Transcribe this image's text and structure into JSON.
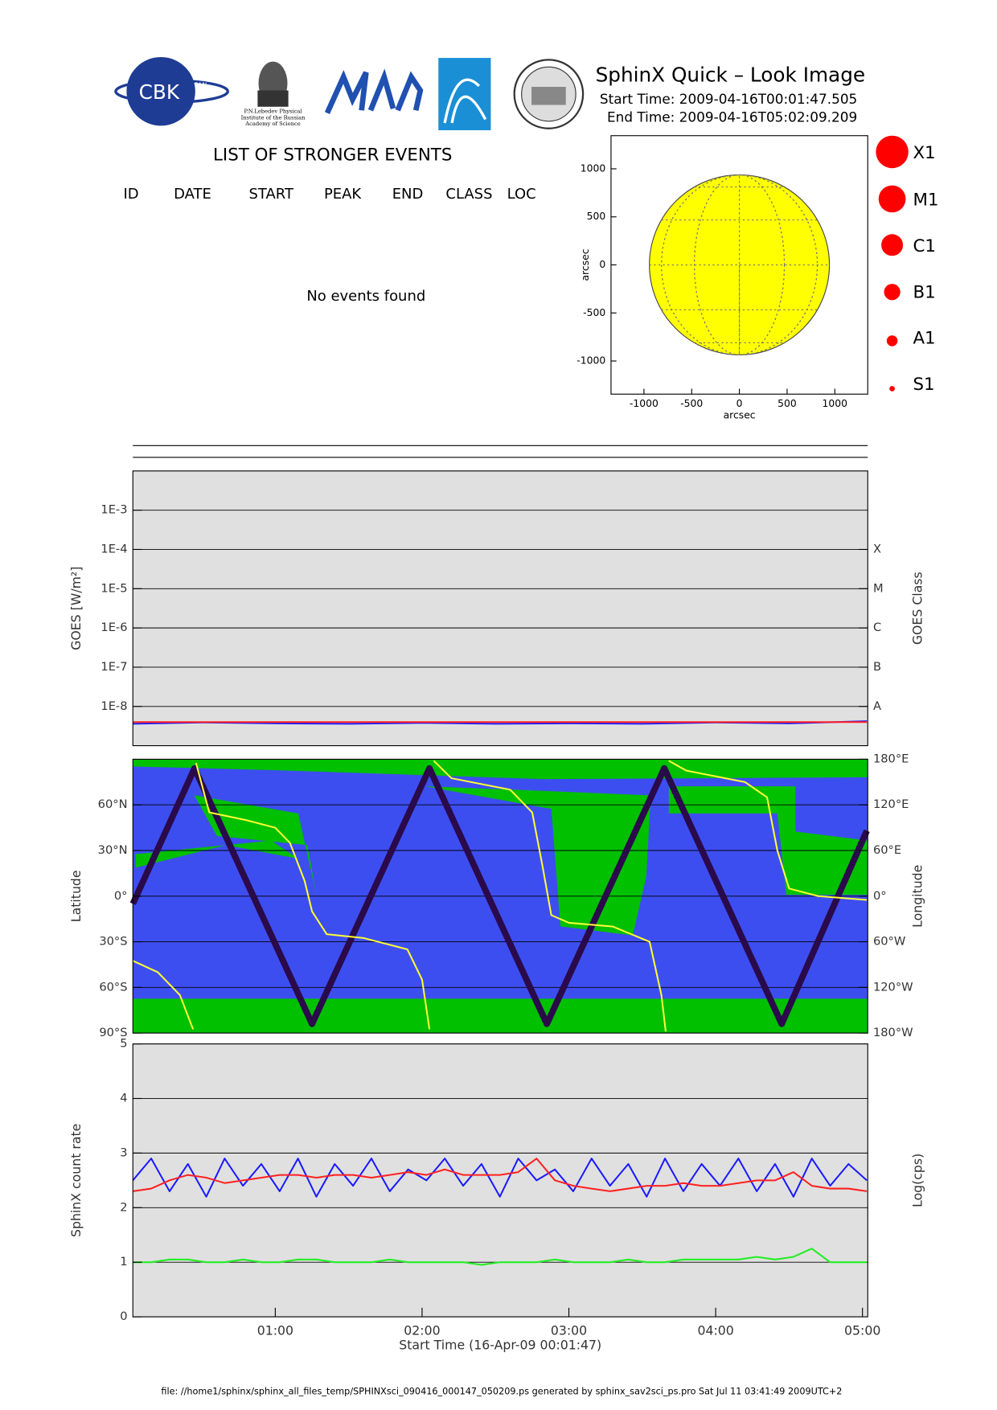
{
  "header": {
    "title": "SphinX Quick – Look Image",
    "start_time": "Start Time: 2009-04-16T00:01:47.505",
    "end_time": "End Time: 2009-04-16T05:02:09.209",
    "logos": [
      "CBK",
      "PAN",
      "P.N.Lebedev Physical",
      "Institute of the Russian",
      "Academy of Science"
    ]
  },
  "events": {
    "title": "LIST OF STRONGER EVENTS",
    "columns": [
      "ID",
      "DATE",
      "START",
      "PEAK",
      "END",
      "CLASS",
      "LOC"
    ],
    "message": "No events found"
  },
  "legend_classes": [
    "X1",
    "M1",
    "C1",
    "B1",
    "A1",
    "S1"
  ],
  "footer": "file: //home1/sphinx/sphinx_all_files_temp/SPHINXsci_090416_000147_050209.ps generated by sphinx_sav2sci_ps.pro Sat Jul 11 03:41:49 2009UTC+2",
  "chart_data": [
    {
      "type": "map",
      "xlabel": "arcsec",
      "ylabel": "arcsec",
      "xlim": [
        -1345,
        1345
      ],
      "ylim": [
        -1345,
        1345
      ],
      "xticks": [
        -1000,
        -500,
        0,
        500,
        1000
      ],
      "yticks": [
        -1000,
        -500,
        0,
        500,
        1000
      ],
      "disk_radius": 943,
      "color": "#ffff00"
    },
    {
      "type": "line",
      "log_y": true,
      "ylabel": "GOES [W/m²]",
      "y2label": "GOES Class",
      "xlim": [
        0.0299,
        5.0359
      ],
      "ylim": [
        1e-09,
        0.01
      ],
      "y2lim": [
        1e-09,
        0.01
      ],
      "grid": true,
      "yticks": [
        {
          "value": 0.001,
          "label": "1E-3"
        },
        {
          "value": 0.0001,
          "label": "1E-4"
        },
        {
          "value": 1e-05,
          "label": "1E-5"
        },
        {
          "value": 1e-06,
          "label": "1E-6"
        },
        {
          "value": 1e-07,
          "label": "1E-7"
        },
        {
          "value": 1e-08,
          "label": "1E-8"
        }
      ],
      "y2ticks": [
        {
          "value": 0.0001,
          "label": "X"
        },
        {
          "value": 1e-05,
          "label": "M"
        },
        {
          "value": 1e-06,
          "label": "C"
        },
        {
          "value": 1e-07,
          "label": "B"
        },
        {
          "value": 1e-08,
          "label": "A"
        }
      ],
      "x": [
        0.03,
        0.5,
        1,
        1.5,
        2,
        2.5,
        3,
        3.5,
        4,
        4.5,
        5.03
      ],
      "series": [
        {
          "color": "#1a1aff",
          "values": [
            3.6e-09,
            3.9e-09,
            3.7e-09,
            3.6e-09,
            3.8e-09,
            3.6e-09,
            3.7e-09,
            3.6e-09,
            3.9e-09,
            3.7e-09,
            4.2e-09
          ]
        },
        {
          "color": "#ff2020",
          "values": [
            4e-09,
            4e-09,
            4e-09,
            4e-09,
            4e-09,
            4e-09,
            4e-09,
            4e-09,
            4e-09,
            4e-09,
            4e-09
          ]
        }
      ]
    },
    {
      "type": "line",
      "ylabel": "Latitude",
      "y2label": "Longitude",
      "xlim": [
        0.0299,
        5.0359
      ],
      "ylim": [
        -90,
        90
      ],
      "y2lim": [
        -180,
        180
      ],
      "grid": true,
      "yticks": [
        {
          "value": -90,
          "label": "90°S"
        },
        {
          "value": -60,
          "label": "60°S"
        },
        {
          "value": -30,
          "label": "30°S"
        },
        {
          "value": 0,
          "label": "0°"
        },
        {
          "value": 30,
          "label": "30°N"
        },
        {
          "value": 60,
          "label": "60°N"
        }
      ],
      "y2ticks": [
        {
          "value": -180,
          "label": "180°W"
        },
        {
          "value": -120,
          "label": "120°W"
        },
        {
          "value": -60,
          "label": "60°W"
        },
        {
          "value": 0,
          "label": "0°"
        },
        {
          "value": 60,
          "label": "60°E"
        },
        {
          "value": 120,
          "label": "120°E"
        },
        {
          "value": 180,
          "label": "180°E"
        }
      ],
      "series": [
        {
          "color": "#2a0a4a",
          "x": [
            0.03,
            0.45,
            1.25,
            2.05,
            2.85,
            3.65,
            4.45,
            5.03
          ],
          "values": [
            -5,
            84,
            -84,
            84,
            -84,
            84,
            -84,
            43
          ]
        },
        {
          "color": "#ffff33",
          "axis": "y2",
          "x": [
            0.03,
            0.2,
            0.35,
            0.44,
            0.45,
            0.46,
            0.55,
            0.8,
            1.0,
            1.1,
            1.2,
            1.25,
            1.35,
            1.6,
            1.9,
            2.0,
            2.05,
            2.06,
            2.08,
            2.2,
            2.6,
            2.75,
            2.82,
            2.88,
            3.0,
            3.3,
            3.55,
            3.63,
            3.66,
            3.67,
            3.68,
            3.8,
            4.2,
            4.35,
            4.42,
            4.5,
            4.7,
            5.03
          ],
          "values": [
            -85,
            -100,
            -130,
            -175,
            null,
            175,
            110,
            100,
            90,
            70,
            20,
            -20,
            -50,
            -55,
            -70,
            -110,
            -175,
            null,
            178,
            155,
            140,
            110,
            40,
            -25,
            -35,
            -40,
            -60,
            -130,
            -178,
            null,
            178,
            165,
            150,
            130,
            60,
            10,
            0,
            -5
          ]
        }
      ]
    },
    {
      "type": "line",
      "ylabel": "SphinX count rate",
      "y2label": "Log(cps)",
      "xlabel": "Start Time (16-Apr-09 00:01:47)",
      "xlim": [
        0.0299,
        5.0359
      ],
      "ylim": [
        0,
        5
      ],
      "yticks": [
        0,
        1,
        2,
        3,
        4,
        5
      ],
      "grid": true,
      "xticks": [
        {
          "value": 1,
          "label": "01:00"
        },
        {
          "value": 2,
          "label": "02:00"
        },
        {
          "value": 3,
          "label": "03:00"
        },
        {
          "value": 4,
          "label": "04:00"
        },
        {
          "value": 5,
          "label": "05:00"
        }
      ],
      "x": [
        0.03,
        0.155,
        0.28,
        0.405,
        0.53,
        0.655,
        0.78,
        0.905,
        1.03,
        1.155,
        1.28,
        1.405,
        1.53,
        1.655,
        1.78,
        1.905,
        2.03,
        2.155,
        2.28,
        2.405,
        2.53,
        2.655,
        2.78,
        2.905,
        3.03,
        3.155,
        3.28,
        3.405,
        3.53,
        3.655,
        3.78,
        3.905,
        4.03,
        4.155,
        4.28,
        4.405,
        4.53,
        4.655,
        4.78,
        4.905,
        5.03
      ],
      "series": [
        {
          "color": "#1a1aff",
          "values": [
            2.5,
            2.9,
            2.3,
            2.8,
            2.2,
            2.9,
            2.4,
            2.8,
            2.3,
            2.9,
            2.2,
            2.8,
            2.4,
            2.9,
            2.3,
            2.7,
            2.5,
            2.9,
            2.4,
            2.8,
            2.2,
            2.9,
            2.5,
            2.7,
            2.3,
            2.9,
            2.4,
            2.8,
            2.2,
            2.9,
            2.3,
            2.8,
            2.4,
            2.9,
            2.3,
            2.8,
            2.2,
            2.9,
            2.4,
            2.8,
            2.5
          ]
        },
        {
          "color": "#ff2020",
          "values": [
            2.3,
            2.35,
            2.5,
            2.6,
            2.55,
            2.45,
            2.5,
            2.55,
            2.6,
            2.6,
            2.55,
            2.6,
            2.6,
            2.55,
            2.6,
            2.65,
            2.6,
            2.7,
            2.6,
            2.6,
            2.6,
            2.65,
            2.9,
            2.5,
            2.4,
            2.35,
            2.3,
            2.35,
            2.4,
            2.4,
            2.45,
            2.4,
            2.4,
            2.45,
            2.5,
            2.5,
            2.65,
            2.4,
            2.35,
            2.35,
            2.3
          ]
        },
        {
          "color": "#22ee22",
          "values": [
            1.0,
            1.0,
            1.05,
            1.05,
            1.0,
            1.0,
            1.05,
            1.0,
            1.0,
            1.05,
            1.05,
            1.0,
            1.0,
            1.0,
            1.05,
            1.0,
            1.0,
            1.0,
            1.0,
            0.95,
            1.0,
            1.0,
            1.0,
            1.05,
            1.0,
            1.0,
            1.0,
            1.05,
            1.0,
            1.0,
            1.05,
            1.05,
            1.05,
            1.05,
            1.1,
            1.05,
            1.1,
            1.25,
            1.0,
            1.0,
            1.0
          ]
        }
      ]
    }
  ]
}
